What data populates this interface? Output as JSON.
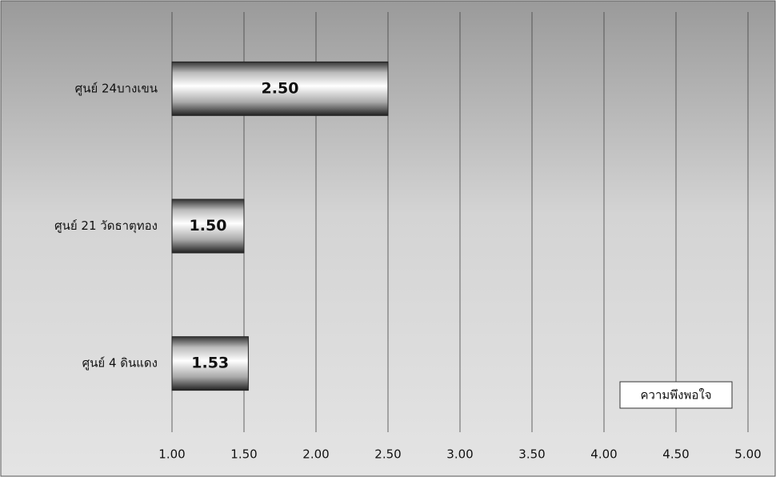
{
  "chart_data": {
    "type": "bar",
    "orientation": "horizontal",
    "categories": [
      "ศูนย์ 24บางเขน",
      "ศูนย์ 21 วัดธาตุทอง",
      "ศูนย์ 4 ดินแดง"
    ],
    "series": [
      {
        "name": "ความพึงพอใจ",
        "color": "#d8d8d8",
        "values": [
          2.5,
          1.5,
          1.53
        ],
        "value_labels": [
          "2.50",
          "1.50",
          "1.53"
        ]
      }
    ],
    "xlim": [
      1,
      5
    ],
    "xticks": [
      {
        "value": 1,
        "label": "1.00"
      },
      {
        "value": 1.5,
        "label": "1.50"
      },
      {
        "value": 2,
        "label": "2.00"
      },
      {
        "value": 2.5,
        "label": "2.50"
      },
      {
        "value": 3,
        "label": "3.00"
      },
      {
        "value": 3.5,
        "label": "3.50"
      },
      {
        "value": 4,
        "label": "4.00"
      },
      {
        "value": 4.5,
        "label": "4.50"
      },
      {
        "value": 5,
        "label": "5.00"
      }
    ],
    "grid": true,
    "legend": "bottom-right"
  }
}
